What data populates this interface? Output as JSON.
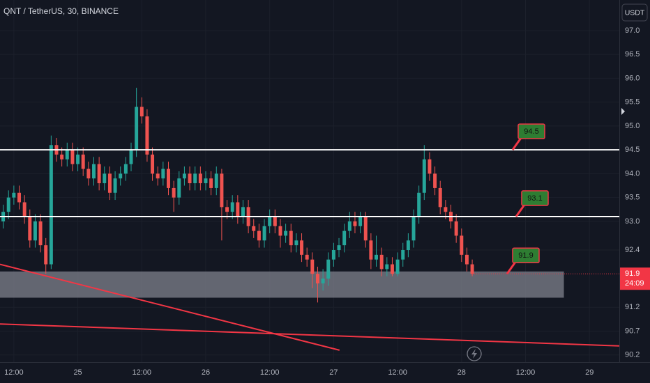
{
  "chart_data": {
    "type": "candlestick",
    "title": "QNT / TetherUS, 30, BINANCE",
    "currency": "USDT",
    "xlim": [
      -0.6,
      115.6
    ],
    "xticks": [
      {
        "value": 2,
        "label": "12:00"
      },
      {
        "value": 14,
        "label": "25"
      },
      {
        "value": 26,
        "label": "12:00"
      },
      {
        "value": 38,
        "label": "26"
      },
      {
        "value": 50,
        "label": "12:00"
      },
      {
        "value": 62,
        "label": "27"
      },
      {
        "value": 74,
        "label": "12:00"
      },
      {
        "value": 86,
        "label": "28"
      },
      {
        "value": 98,
        "label": "12:00"
      },
      {
        "value": 110,
        "label": "29"
      }
    ],
    "ylim": [
      90.05,
      97.64
    ],
    "yticks": [
      {
        "value": 97,
        "label": "97.0"
      },
      96.5,
      {
        "value": 96,
        "label": "96.0"
      },
      95.5,
      {
        "value": 95,
        "label": "95.0"
      },
      94.5,
      {
        "value": 94,
        "label": "94.0"
      },
      93.5,
      {
        "value": 93,
        "label": "93.0"
      },
      92.4,
      91.2,
      90.7,
      90.2
    ],
    "grid": true,
    "up_color": "#26a69a",
    "down_color": "#ef5350",
    "open": [
      93.0,
      93.2,
      93.5,
      93.6,
      93.4,
      93.1,
      92.6,
      93.0,
      92.5,
      92.1,
      94.6,
      94.4,
      94.3,
      94.5,
      94.2,
      94.4,
      94.1,
      93.9,
      94.2,
      93.8,
      94.0,
      93.6,
      93.9,
      94.0,
      94.2,
      94.5,
      95.4,
      95.2,
      94.4,
      94.0,
      93.9,
      94.1,
      93.7,
      93.5,
      93.9,
      94.0,
      93.8,
      94.0,
      93.8,
      93.9,
      93.7,
      94.0,
      93.3,
      93.2,
      93.4,
      93.1,
      93.3,
      92.9,
      92.8,
      92.6,
      92.9,
      93.1,
      92.9,
      92.7,
      92.8,
      92.5,
      92.6,
      92.3,
      92.2,
      91.9,
      91.7,
      91.8,
      92.2,
      92.4,
      92.5,
      92.8,
      93.0,
      92.9,
      93.1,
      92.6,
      92.2,
      92.3,
      92.0,
      92.1,
      91.9,
      92.2,
      92.4,
      92.6,
      93.1,
      93.6,
      94.3,
      94.0,
      93.7,
      93.3,
      93.2,
      93.0,
      92.7,
      92.3,
      92.1
    ],
    "high": [
      93.35,
      93.65,
      93.75,
      93.75,
      93.55,
      93.25,
      93.15,
      93.15,
      92.65,
      94.8,
      94.75,
      94.55,
      94.65,
      94.65,
      94.55,
      94.55,
      94.25,
      94.35,
      94.35,
      94.15,
      94.15,
      94.05,
      94.15,
      94.35,
      94.65,
      95.8,
      95.6,
      95.35,
      94.55,
      94.15,
      94.25,
      94.25,
      93.85,
      94.05,
      94.15,
      94.15,
      94.15,
      94.15,
      94.05,
      94.05,
      94.15,
      94.1,
      93.45,
      93.55,
      93.55,
      93.45,
      93.45,
      93.05,
      92.95,
      93.05,
      93.25,
      93.25,
      93.05,
      92.95,
      92.95,
      92.75,
      92.75,
      92.45,
      92.35,
      92.05,
      92.0,
      92.35,
      92.55,
      92.65,
      92.95,
      93.2,
      93.2,
      93.2,
      93.2,
      92.75,
      92.7,
      92.45,
      92.25,
      92.25,
      92.35,
      92.55,
      92.75,
      93.25,
      93.75,
      94.6,
      94.45,
      94.15,
      93.85,
      93.45,
      93.35,
      93.15,
      92.85,
      92.45,
      92.2
    ],
    "low": [
      92.85,
      93.05,
      93.35,
      93.25,
      92.95,
      92.45,
      92.45,
      92.35,
      91.9,
      92.0,
      94.25,
      94.15,
      94.15,
      94.05,
      94.05,
      93.95,
      93.75,
      93.75,
      93.65,
      93.65,
      93.45,
      93.45,
      93.75,
      93.85,
      94.05,
      94.35,
      95.05,
      94.25,
      93.85,
      93.75,
      93.75,
      93.55,
      93.2,
      93.35,
      93.75,
      93.65,
      93.65,
      93.65,
      93.65,
      93.55,
      93.55,
      92.6,
      93.05,
      93.05,
      92.95,
      92.95,
      92.75,
      92.65,
      92.45,
      92.45,
      92.75,
      92.75,
      92.45,
      92.55,
      92.35,
      92.35,
      92.15,
      92.05,
      91.6,
      91.3,
      91.55,
      91.65,
      92.05,
      92.25,
      92.35,
      92.65,
      92.75,
      92.75,
      92.45,
      92.0,
      92.05,
      91.85,
      91.85,
      91.85,
      91.85,
      92.05,
      92.25,
      92.45,
      92.95,
      93.45,
      93.85,
      93.55,
      93.15,
      93.05,
      92.85,
      92.55,
      92.15,
      91.95,
      91.85
    ],
    "close": [
      93.2,
      93.5,
      93.6,
      93.4,
      93.1,
      92.6,
      93.0,
      92.5,
      92.1,
      94.6,
      94.4,
      94.3,
      94.5,
      94.2,
      94.4,
      94.1,
      93.9,
      94.2,
      93.8,
      94.0,
      93.6,
      93.9,
      94.0,
      94.2,
      94.5,
      95.4,
      95.2,
      94.4,
      94.0,
      93.9,
      94.1,
      93.7,
      93.5,
      93.9,
      94.0,
      93.8,
      94.0,
      93.8,
      93.9,
      93.7,
      94.0,
      93.3,
      93.2,
      93.4,
      93.1,
      93.3,
      92.9,
      92.8,
      92.6,
      92.9,
      93.1,
      92.9,
      92.7,
      92.8,
      92.5,
      92.6,
      92.3,
      92.2,
      91.9,
      91.7,
      91.8,
      92.2,
      92.4,
      92.5,
      92.8,
      93.0,
      92.9,
      93.1,
      92.6,
      92.2,
      92.3,
      92.0,
      92.1,
      91.9,
      92.2,
      92.4,
      92.6,
      93.1,
      93.6,
      94.3,
      94.0,
      93.7,
      93.3,
      93.2,
      93.0,
      92.7,
      92.3,
      92.1,
      91.9
    ],
    "levels": [
      94.5,
      93.1
    ],
    "callouts": [
      94.5,
      93.1,
      91.9
    ],
    "zone": {
      "x": [
        -0.6,
        105.2
      ],
      "y": [
        91.4,
        91.95
      ]
    },
    "trendlines": [
      {
        "x": [
          -0.6,
          63.1
        ],
        "y": [
          92.1,
          90.3
        ]
      },
      {
        "x": [
          -0.6,
          115.6
        ],
        "y": [
          90.85,
          90.39
        ]
      }
    ],
    "last_price": 91.9,
    "countdown": "24:09"
  }
}
